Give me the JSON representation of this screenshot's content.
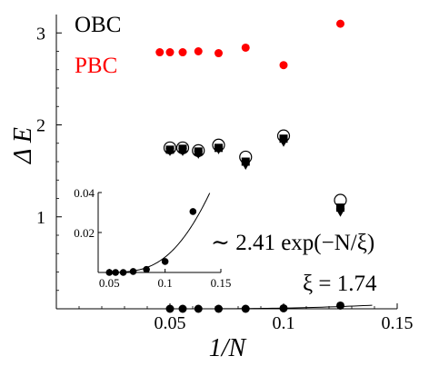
{
  "chart_data": {
    "type": "scatter",
    "xlabel": "1/N",
    "ylabel": "Δ E",
    "xlim": [
      0.0,
      0.15
    ],
    "ylim": [
      0.0,
      3.2
    ],
    "xticks": [
      0.05,
      0.1,
      0.15
    ],
    "xtick_labels": [
      "0.05",
      "0.1",
      "0.15"
    ],
    "yticks": [
      1,
      2,
      3
    ],
    "ytick_labels": [
      "1",
      "2",
      "3"
    ],
    "legend": [
      {
        "label": "OBC",
        "color": "#000000"
      },
      {
        "label": "PBC",
        "color": "#ff0000"
      }
    ],
    "legend_position": "top-left",
    "series": [
      {
        "marker": "filled-circle",
        "color": "#ff0000",
        "points": [
          [
            0.0455,
            2.79
          ],
          [
            0.05,
            2.79
          ],
          [
            0.0556,
            2.79
          ],
          [
            0.0625,
            2.8
          ],
          [
            0.0714,
            2.78
          ],
          [
            0.0833,
            2.84
          ],
          [
            0.1,
            2.65
          ],
          [
            0.125,
            3.1
          ]
        ]
      },
      {
        "marker": "open-circle",
        "color": "#000000",
        "points": [
          [
            0.05,
            1.75
          ],
          [
            0.0556,
            1.75
          ],
          [
            0.0625,
            1.72
          ],
          [
            0.0714,
            1.78
          ],
          [
            0.0833,
            1.65
          ],
          [
            0.1,
            1.88
          ],
          [
            0.125,
            1.18
          ]
        ]
      },
      {
        "marker": "filled-down-triangle",
        "color": "#000000",
        "points": [
          [
            0.05,
            1.71
          ],
          [
            0.0556,
            1.71
          ],
          [
            0.0625,
            1.68
          ],
          [
            0.0714,
            1.73
          ],
          [
            0.0833,
            1.56
          ],
          [
            0.1,
            1.81
          ],
          [
            0.125,
            1.05
          ]
        ]
      },
      {
        "marker": "filled-square",
        "color": "#000000",
        "points": [
          [
            0.05,
            1.73
          ],
          [
            0.0556,
            1.74
          ],
          [
            0.0625,
            1.71
          ],
          [
            0.0714,
            1.75
          ],
          [
            0.0833,
            1.6
          ],
          [
            0.1,
            1.85
          ],
          [
            0.125,
            1.1
          ]
        ]
      },
      {
        "marker": "filled-circle",
        "color": "#000000",
        "points": [
          [
            0.05,
            0.0
          ],
          [
            0.0556,
            0.0
          ],
          [
            0.0625,
            0.0
          ],
          [
            0.0714,
            0.0
          ],
          [
            0.0833,
            0.0
          ],
          [
            0.1,
            0.005
          ],
          [
            0.125,
            0.035
          ]
        ]
      }
    ],
    "fit": {
      "amplitude": 2.41,
      "xi": 1.74
    },
    "annotations": [
      "∼ 2.41 exp(−N/ξ)",
      "ξ = 1.74"
    ],
    "inset": {
      "xlim": [
        0.04,
        0.15
      ],
      "ylim": [
        0.0,
        0.04
      ],
      "xticks": [
        0.05,
        0.1,
        0.15
      ],
      "xtick_labels": [
        "0.05",
        "0.1",
        "0.15"
      ],
      "yticks": [
        0.02,
        0.04
      ],
      "ytick_labels": [
        "0.02",
        "0.04"
      ],
      "points": [
        [
          0.05,
          0.0
        ],
        [
          0.0556,
          0.0
        ],
        [
          0.0625,
          0.0
        ],
        [
          0.0714,
          0.0005
        ],
        [
          0.0833,
          0.0015
        ],
        [
          0.1,
          0.0055
        ],
        [
          0.125,
          0.0305
        ]
      ]
    }
  }
}
